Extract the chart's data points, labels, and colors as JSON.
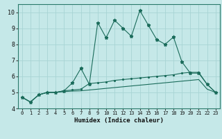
{
  "xlabel": "Humidex (Indice chaleur)",
  "ylabel": "",
  "bg_color": "#c5e8e8",
  "grid_color": "#a8d4d4",
  "line_color": "#1a6b5a",
  "xlim": [
    -0.5,
    23.5
  ],
  "ylim": [
    4,
    10.5
  ],
  "xticks": [
    0,
    1,
    2,
    3,
    4,
    5,
    6,
    7,
    8,
    9,
    10,
    11,
    12,
    13,
    14,
    15,
    16,
    17,
    18,
    19,
    20,
    21,
    22,
    23
  ],
  "yticks": [
    4,
    5,
    6,
    7,
    8,
    9,
    10
  ],
  "line1_x": [
    0,
    1,
    2,
    3,
    4,
    5,
    6,
    7,
    8,
    9,
    10,
    11,
    12,
    13,
    14,
    15,
    16,
    17,
    18,
    19,
    20,
    21,
    22,
    23
  ],
  "line1_y": [
    4.7,
    4.4,
    4.85,
    5.0,
    5.0,
    5.1,
    5.6,
    6.5,
    5.5,
    9.35,
    8.4,
    9.5,
    9.0,
    8.5,
    10.1,
    9.2,
    8.3,
    8.0,
    8.45,
    6.9,
    6.2,
    6.2,
    5.5,
    5.0
  ],
  "line2_x": [
    0,
    1,
    2,
    3,
    4,
    5,
    6,
    7,
    8,
    9,
    10,
    11,
    12,
    13,
    14,
    15,
    16,
    17,
    18,
    19,
    20,
    21,
    22,
    23
  ],
  "line2_y": [
    4.7,
    4.4,
    4.85,
    5.0,
    5.0,
    5.1,
    5.15,
    5.2,
    5.55,
    5.6,
    5.65,
    5.75,
    5.8,
    5.85,
    5.9,
    5.95,
    6.0,
    6.05,
    6.1,
    6.2,
    6.25,
    6.25,
    5.5,
    5.0
  ],
  "line3_x": [
    0,
    1,
    2,
    3,
    4,
    5,
    6,
    7,
    8,
    9,
    10,
    11,
    12,
    13,
    14,
    15,
    16,
    17,
    18,
    19,
    20,
    21,
    22,
    23
  ],
  "line3_y": [
    4.7,
    4.4,
    4.85,
    5.0,
    5.0,
    5.05,
    5.08,
    5.1,
    5.15,
    5.2,
    5.25,
    5.3,
    5.35,
    5.4,
    5.45,
    5.5,
    5.55,
    5.6,
    5.65,
    5.7,
    5.75,
    5.8,
    5.2,
    5.0
  ]
}
